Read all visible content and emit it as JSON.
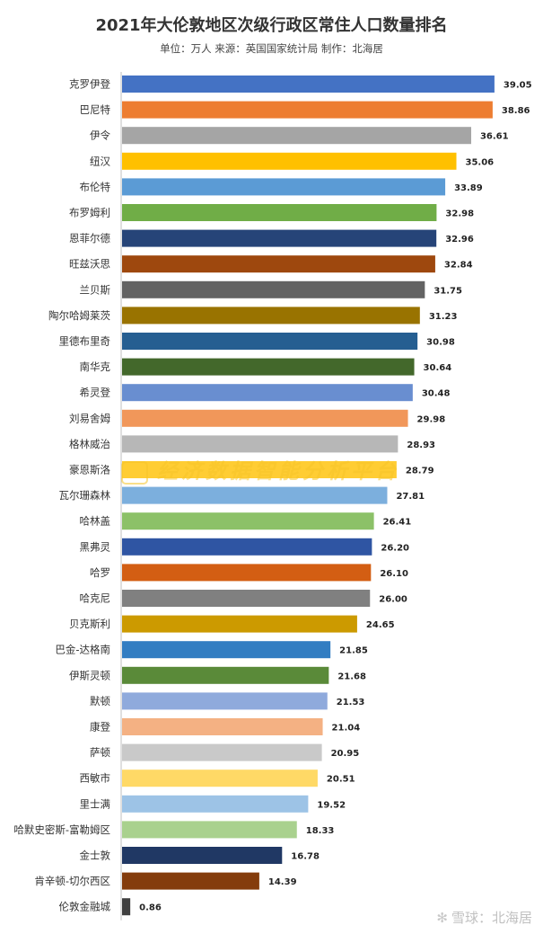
{
  "chart_data": {
    "type": "bar",
    "orientation": "horizontal",
    "title": "2021年大伦敦地区次级行政区常住人口数量排名",
    "subtitle": "单位：万人 来源：英国国家统计局 制作：北海居",
    "xlim": [
      0,
      40
    ],
    "categories": [
      "克罗伊登",
      "巴尼特",
      "伊令",
      "纽汉",
      "布伦特",
      "布罗姆利",
      "恩菲尔德",
      "旺兹沃思",
      "兰贝斯",
      "陶尔哈姆莱茨",
      "里德布里奇",
      "南华克",
      "希灵登",
      "刘易舍姆",
      "格林威治",
      "豪恩斯洛",
      "瓦尔珊森林",
      "哈林盖",
      "黑弗灵",
      "哈罗",
      "哈克尼",
      "贝克斯利",
      "巴金-达格南",
      "伊斯灵顿",
      "默顿",
      "康登",
      "萨顿",
      "西敏市",
      "里士满",
      "哈默史密斯-富勒姆区",
      "金士敦",
      "肯辛顿-切尔西区",
      "伦敦金融城"
    ],
    "values": [
      39.05,
      38.86,
      36.61,
      35.06,
      33.89,
      32.98,
      32.96,
      32.84,
      31.75,
      31.23,
      30.98,
      30.64,
      30.48,
      29.98,
      28.93,
      28.79,
      27.81,
      26.41,
      26.2,
      26.1,
      26.0,
      24.65,
      21.85,
      21.68,
      21.53,
      21.04,
      20.95,
      20.51,
      19.52,
      18.33,
      16.78,
      14.39,
      0.86
    ],
    "value_labels": [
      "39.05",
      "38.86",
      "36.61",
      "35.06",
      "33.89",
      "32.98",
      "32.96",
      "32.84",
      "31.75",
      "31.23",
      "30.98",
      "30.64",
      "30.48",
      "29.98",
      "28.93",
      "28.79",
      "27.81",
      "26.41",
      "26.20",
      "26.10",
      "26.00",
      "24.65",
      "21.85",
      "21.68",
      "21.53",
      "21.04",
      "20.95",
      "20.51",
      "19.52",
      "18.33",
      "16.78",
      "14.39",
      "0.86"
    ],
    "colors": [
      "#4472C4",
      "#ED7D31",
      "#A5A5A5",
      "#FFC000",
      "#5B9BD5",
      "#70AD47",
      "#264478",
      "#9E480E",
      "#636363",
      "#997300",
      "#255E91",
      "#43682B",
      "#698ED0",
      "#F1975A",
      "#B7B7B7",
      "#FFCD33",
      "#7CAFDD",
      "#8CC168",
      "#2F55A3",
      "#D35E13",
      "#808080",
      "#CC9A00",
      "#327DC2",
      "#5A8A39",
      "#8FAADC",
      "#F4B183",
      "#C9C9C9",
      "#FFD966",
      "#9DC3E6",
      "#A9D18E",
      "#203864",
      "#843C0C",
      "#404040"
    ]
  },
  "watermark_text": "经济数据智能分析平台",
  "footer_logo": "雪球：北海居"
}
